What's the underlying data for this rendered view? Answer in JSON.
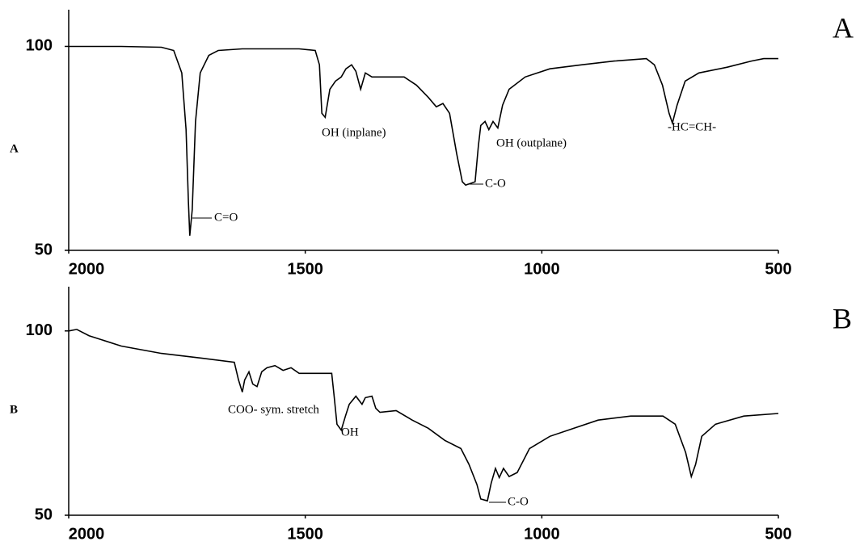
{
  "chart_data": [
    {
      "type": "line",
      "label": "A",
      "color": "#000000",
      "xlim": [
        2000,
        500
      ],
      "xticks": [
        2000,
        1500,
        1000,
        500
      ],
      "ylim": [
        50,
        109
      ],
      "yticks": [
        50,
        100
      ],
      "x": [
        2000,
        1889,
        1804,
        1778,
        1761,
        1752,
        1747,
        1744,
        1739,
        1732,
        1722,
        1704,
        1684,
        1633,
        1513,
        1479,
        1470,
        1465,
        1458,
        1448,
        1436,
        1424,
        1414,
        1402,
        1393,
        1383,
        1373,
        1359,
        1325,
        1291,
        1265,
        1240,
        1223,
        1209,
        1195,
        1180,
        1168,
        1161,
        1141,
        1134,
        1129,
        1120,
        1112,
        1103,
        1093,
        1083,
        1069,
        1035,
        983,
        915,
        847,
        779,
        762,
        745,
        731,
        724,
        714,
        697,
        668,
        608,
        557,
        531,
        500
      ],
      "values": [
        100,
        100,
        99.8,
        99,
        93.5,
        79.6,
        61.9,
        53.6,
        59.9,
        81.6,
        93.5,
        97.8,
        99,
        99.4,
        99.4,
        99,
        95.5,
        83.6,
        82.6,
        89.5,
        91.5,
        92.5,
        94.5,
        95.5,
        93.9,
        89.5,
        93.5,
        92.5,
        92.5,
        92.5,
        90.5,
        87.5,
        85.2,
        86,
        83.6,
        73.7,
        66.8,
        66,
        66.8,
        75.7,
        80.6,
        81.6,
        79.6,
        81.6,
        80,
        85.6,
        89.5,
        92.5,
        94.5,
        95.5,
        96.4,
        97,
        95.5,
        90.5,
        83.6,
        81.2,
        85.6,
        91.5,
        93.5,
        94.9,
        96.4,
        97,
        97
      ],
      "annotations": [
        "C=O",
        "OH (inplane)",
        "C-O",
        "OH (outplane)",
        "-HC=CH-"
      ]
    },
    {
      "type": "line",
      "label": "B",
      "color": "#000000",
      "xlim": [
        2000,
        500
      ],
      "xticks": [
        2000,
        1500,
        1000,
        500
      ],
      "ylim": [
        50,
        112
      ],
      "yticks": [
        50,
        100
      ],
      "x": [
        2000,
        1983,
        1957,
        1889,
        1804,
        1718,
        1650,
        1641,
        1633,
        1628,
        1619,
        1611,
        1602,
        1592,
        1581,
        1564,
        1547,
        1530,
        1513,
        1444,
        1439,
        1433,
        1424,
        1415,
        1407,
        1393,
        1380,
        1373,
        1359,
        1351,
        1342,
        1308,
        1274,
        1240,
        1205,
        1171,
        1154,
        1137,
        1129,
        1115,
        1107,
        1098,
        1090,
        1081,
        1069,
        1052,
        1026,
        983,
        932,
        881,
        812,
        744,
        718,
        696,
        684,
        675,
        662,
        633,
        573,
        500
      ],
      "values": [
        100,
        100.4,
        98.7,
        95.9,
        93.9,
        92.6,
        91.5,
        86.7,
        83.4,
        86.7,
        88.9,
        85.6,
        84.9,
        88.9,
        90,
        90.6,
        89.3,
        90,
        88.5,
        88.5,
        82.3,
        74.7,
        73.1,
        76.9,
        80.1,
        82.3,
        80.1,
        81.9,
        82.3,
        79,
        77.9,
        78.4,
        75.8,
        73.6,
        70.3,
        68.1,
        63.8,
        58.3,
        54.4,
        53.9,
        58.7,
        62.7,
        60.2,
        62.7,
        60.5,
        61.6,
        68.1,
        71.4,
        73.6,
        75.8,
        76.9,
        76.9,
        74.7,
        67,
        60.5,
        63.8,
        71.4,
        74.7,
        76.9,
        77.6
      ],
      "annotations": [
        "COO- sym. stretch",
        "OH",
        "C-O"
      ]
    }
  ]
}
